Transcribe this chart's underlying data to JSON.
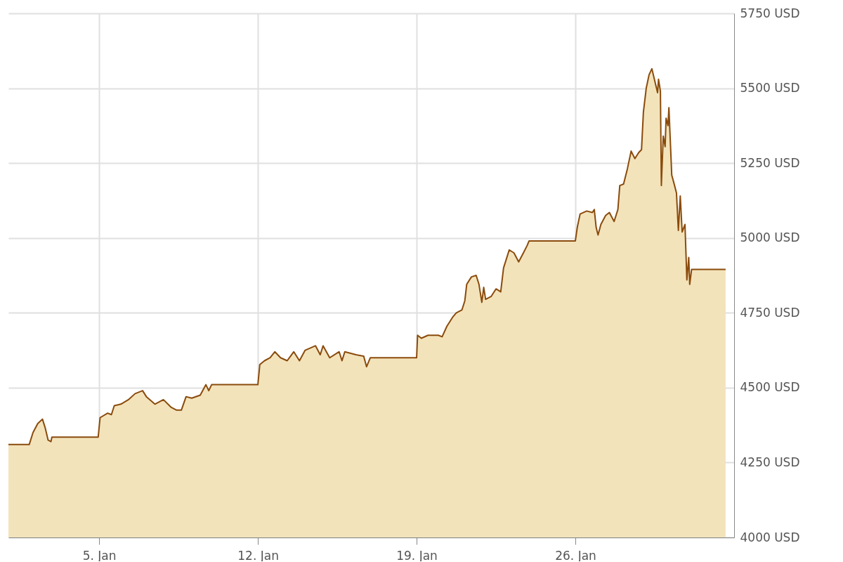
{
  "chart_data": {
    "type": "area",
    "x": [
      "--01-01T00:00",
      "--01-01T22:00",
      "--01-02T02:00",
      "--01-02T07:00",
      "--01-02T12:00",
      "--01-02T15:00",
      "--01-02T18:00",
      "--01-02T21:00",
      "--01-02T22:00",
      "--01-04T23:00",
      "--01-05T01:00",
      "--01-05T09:00",
      "--01-05T13:00",
      "--01-05T16:00",
      "--01-05T23:00",
      "--01-06T07:00",
      "--01-06T14:00",
      "--01-06T22:00",
      "--01-07T02:00",
      "--01-07T11:00",
      "--01-07T20:00",
      "--01-08T04:00",
      "--01-08T10:00",
      "--01-08T15:00",
      "--01-08T20:00",
      "--01-09T02:00",
      "--01-09T11:00",
      "--01-09T17:00",
      "--01-09T20:00",
      "--01-09T23:00",
      "--01-12T00:00",
      "--01-12T02:00",
      "--01-12T07:00",
      "--01-12T13:00",
      "--01-12T18:00",
      "--01-13T00:00",
      "--01-13T07:00",
      "--01-13T14:00",
      "--01-13T20:00",
      "--01-14T02:00",
      "--01-14T13:00",
      "--01-14T18:00",
      "--01-14T21:00",
      "--01-15T04:00",
      "--01-15T14:00",
      "--01-15T17:00",
      "--01-15T20:00",
      "--01-16T08:00",
      "--01-16T16:00",
      "--01-16T19:00",
      "--01-16T23:00",
      "--01-19T00:00",
      "--01-19T01:00",
      "--01-19T05:00",
      "--01-19T12:00",
      "--01-19T23:00",
      "--01-20T03:00",
      "--01-20T08:00",
      "--01-20T14:00",
      "--01-20T18:00",
      "--01-21T00:00",
      "--01-21T03:00",
      "--01-21T05:00",
      "--01-21T10:00",
      "--01-21T15:00",
      "--01-21T18:00",
      "--01-21T21:00",
      "--01-21T23:00",
      "--01-22T01:00",
      "--01-22T07:00",
      "--01-22T12:00",
      "--01-22T17:00",
      "--01-22T20:00",
      "--01-23T02:00",
      "--01-23T07:00",
      "--01-23T12:00",
      "--01-23T17:00",
      "--01-23T21:00",
      "--01-23T23:00",
      "--01-26T00:00",
      "--01-26T02:00",
      "--01-26T05:00",
      "--01-26T12:00",
      "--01-26T18:00",
      "--01-26T20:00",
      "--01-26T22:00",
      "--01-27T00:00",
      "--01-27T03:00",
      "--01-27T08:00",
      "--01-27T12:00",
      "--01-27T17:00",
      "--01-27T21:00",
      "--01-27T23:00",
      "--01-28T03:00",
      "--01-28T07:00",
      "--01-28T11:00",
      "--01-28T15:00",
      "--01-28T19:00",
      "--01-28T22:00",
      "--01-29T00:00",
      "--01-29T03:00",
      "--01-29T06:00",
      "--01-29T09:00",
      "--01-29T12:00",
      "--01-29T15:00",
      "--01-29T16:00",
      "--01-29T18:00",
      "--01-29T19:00",
      "--01-29T21:00",
      "--01-29T23:00",
      "--01-30T00:00",
      "--01-30T02:00",
      "--01-30T03:00",
      "--01-30T06:00",
      "--01-30T09:00",
      "--01-30T11:00",
      "--01-30T13:00",
      "--01-30T15:00",
      "--01-30T17:00",
      "--01-30T20:00",
      "--01-30T22:00",
      "--01-31T00:00",
      "--01-31T01:00",
      "--01-31T03:00",
      "--02-01T15:00"
    ],
    "series": [
      {
        "color": "#8a4b0c",
        "values": [
          4310,
          4310,
          4350,
          4380,
          4395,
          4365,
          4325,
          4320,
          4335,
          4335,
          4400,
          4415,
          4410,
          4440,
          4445,
          4460,
          4480,
          4490,
          4470,
          4445,
          4460,
          4435,
          4425,
          4425,
          4470,
          4465,
          4475,
          4510,
          4490,
          4510,
          4510,
          4577,
          4590,
          4600,
          4620,
          4600,
          4590,
          4620,
          4590,
          4625,
          4640,
          4610,
          4640,
          4600,
          4620,
          4590,
          4620,
          4610,
          4605,
          4570,
          4600,
          4600,
          4675,
          4665,
          4675,
          4675,
          4670,
          4705,
          4735,
          4750,
          4760,
          4790,
          4845,
          4870,
          4875,
          4845,
          4785,
          4835,
          4795,
          4805,
          4830,
          4820,
          4900,
          4960,
          4950,
          4920,
          4950,
          4975,
          4990,
          4990,
          5035,
          5080,
          5090,
          5085,
          5095,
          5035,
          5010,
          5045,
          5075,
          5085,
          5055,
          5095,
          5175,
          5180,
          5230,
          5290,
          5265,
          5285,
          5295,
          5420,
          5500,
          5545,
          5565,
          5525,
          5485,
          5530,
          5490,
          5175,
          5340,
          5305,
          5400,
          5375,
          5435,
          5210,
          5175,
          5150,
          5025,
          5140,
          5020,
          5045,
          4860,
          4935,
          4845,
          4895,
          4895
        ]
      }
    ],
    "xlim": [
      "--01-01",
      "--02-02"
    ],
    "xticks": [
      {
        "value": "--01-05",
        "label": "5. Jan"
      },
      {
        "value": "--01-12",
        "label": "12. Jan"
      },
      {
        "value": "--01-19",
        "label": "19. Jan"
      },
      {
        "value": "--01-26",
        "label": "26. Jan"
      }
    ],
    "ylim": [
      4000,
      5750
    ],
    "yticks": [
      {
        "value": 4000,
        "label": "4000 USD"
      },
      {
        "value": 4250,
        "label": "4250 USD"
      },
      {
        "value": 4500,
        "label": "4500 USD"
      },
      {
        "value": 4750,
        "label": "4750 USD"
      },
      {
        "value": 5000,
        "label": "5000 USD"
      },
      {
        "value": 5250,
        "label": "5250 USD"
      },
      {
        "value": 5500,
        "label": "5500 USD"
      },
      {
        "value": 5750,
        "label": "5750 USD"
      }
    ],
    "grid": true
  }
}
